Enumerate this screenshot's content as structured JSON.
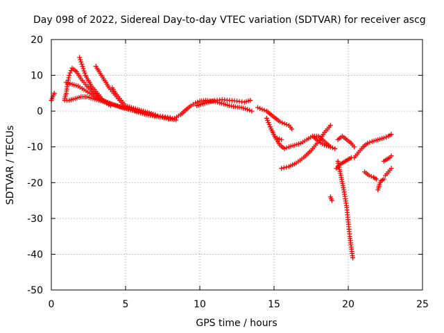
{
  "chart_data": {
    "type": "scatter",
    "title": "Day 098 of 2022, Sidereal Day-to-day VTEC variation (SDTVAR) for receiver ascg",
    "xlabel": "GPS time / hours",
    "ylabel": "SDTVAR / TECUs",
    "xlim": [
      0,
      25
    ],
    "ylim": [
      -50,
      20
    ],
    "xticks": [
      "0",
      "5",
      "10",
      "15",
      "20",
      "25"
    ],
    "yticks": [
      "20",
      "10",
      "0",
      "-10",
      "-20",
      "-30",
      "-40",
      "-50"
    ],
    "grid": true,
    "marker": "plus",
    "marker_color": "#ff0000",
    "series": [
      {
        "name": "trace-1",
        "x": [
          0.0,
          0.1,
          0.2
        ],
        "y": [
          3,
          4,
          5
        ]
      },
      {
        "name": "trace-2",
        "x": [
          0.9,
          1.0,
          1.1,
          1.2,
          1.4,
          1.7,
          2.0,
          2.4,
          2.8,
          3.2,
          3.6,
          4.0
        ],
        "y": [
          3.5,
          5,
          8,
          10,
          12,
          11,
          9,
          7,
          5.5,
          4,
          2.5,
          1.5
        ]
      },
      {
        "name": "trace-3",
        "x": [
          0.9,
          1.2,
          1.6,
          2.0,
          2.4,
          2.8,
          3.2,
          3.6,
          4.0,
          4.4,
          4.8,
          5.2,
          5.6,
          6.0,
          6.4,
          6.8,
          7.2,
          7.6,
          8.0,
          8.4
        ],
        "y": [
          3,
          3,
          3.5,
          4,
          4,
          3.5,
          3,
          2.5,
          2,
          1.5,
          1,
          0.5,
          0,
          -0.5,
          -1,
          -1.3,
          -1.6,
          -1.9,
          -2.2,
          -2.5
        ]
      },
      {
        "name": "trace-4",
        "x": [
          1.9,
          2.1,
          2.3,
          2.5,
          2.7,
          2.9,
          3.1,
          3.3,
          3.5,
          3.7,
          3.9
        ],
        "y": [
          15,
          12.5,
          10,
          8.5,
          7,
          6,
          5,
          4,
          3,
          2.5,
          2
        ]
      },
      {
        "name": "trace-5",
        "x": [
          1.0,
          1.4,
          1.8,
          2.2,
          2.6,
          3.0,
          3.4,
          3.8,
          4.2,
          4.6,
          5.0,
          5.5,
          6.0,
          6.5,
          7.0,
          7.5,
          8.0
        ],
        "y": [
          8,
          7.5,
          7,
          6,
          5,
          4,
          3,
          2.5,
          1.8,
          1.2,
          0.8,
          0.3,
          -0.2,
          -0.7,
          -1.2,
          -1.5,
          -1.8
        ]
      },
      {
        "name": "trace-6",
        "x": [
          3.0,
          3.3,
          3.6,
          3.9,
          4.2,
          4.5,
          4.8
        ],
        "y": [
          12.5,
          10.5,
          8.5,
          6.5,
          5,
          3.5,
          2
        ]
      },
      {
        "name": "trace-7",
        "x": [
          4.1,
          4.4,
          4.7,
          5.0,
          5.4,
          5.8,
          6.2,
          6.6,
          7.0
        ],
        "y": [
          6.5,
          4.5,
          3,
          1.5,
          1,
          0.5,
          0,
          -0.5,
          -1
        ]
      },
      {
        "name": "trace-8",
        "x": [
          7.9,
          8.3,
          8.7,
          9.1,
          9.4,
          9.7,
          10.0,
          10.4,
          10.8,
          11.2,
          11.6,
          12.0,
          12.4,
          12.8,
          13.2,
          13.5
        ],
        "y": [
          -2.2,
          -2,
          -1,
          0.5,
          1.5,
          2.3,
          2.8,
          3,
          2.8,
          2.5,
          2,
          1.5,
          1.2,
          1,
          0.5,
          0
        ]
      },
      {
        "name": "trace-9",
        "x": [
          9.8,
          10.2,
          10.6,
          11.0,
          11.5,
          12.0,
          12.5,
          13.0,
          13.4
        ],
        "y": [
          1.5,
          2,
          2.5,
          3,
          3.2,
          3,
          2.8,
          2.5,
          3
        ]
      },
      {
        "name": "trace-10",
        "x": [
          13.9,
          14.2,
          14.5,
          14.8,
          15.1,
          15.4,
          15.7,
          16.0,
          16.2
        ],
        "y": [
          1,
          0.5,
          0,
          -1,
          -2,
          -3,
          -3.5,
          -4,
          -5
        ]
      },
      {
        "name": "trace-11",
        "x": [
          14.5,
          14.8,
          15.1,
          15.4,
          15.7,
          16.0,
          16.4,
          16.8,
          17.2,
          17.6,
          18.0,
          18.4,
          18.8
        ],
        "y": [
          -2,
          -5,
          -7.5,
          -9.5,
          -10.5,
          -10,
          -9.5,
          -9,
          -8,
          -7,
          -7,
          -8.5,
          -10
        ]
      },
      {
        "name": "trace-12",
        "x": [
          15.5,
          16.0,
          16.5,
          17.0,
          17.5,
          18.0,
          18.4,
          18.8
        ],
        "y": [
          -16,
          -15.5,
          -14.5,
          -13,
          -11,
          -8.5,
          -6,
          -4
        ]
      },
      {
        "name": "trace-13",
        "x": [
          15.2,
          15.5
        ],
        "y": [
          -7.5,
          -8
        ]
      },
      {
        "name": "trace-14",
        "x": [
          17.6,
          18.0,
          18.4,
          18.8,
          19.1
        ],
        "y": [
          -7,
          -8.5,
          -9.5,
          -10,
          -10.5
        ]
      },
      {
        "name": "trace-15",
        "x": [
          18.8,
          18.9
        ],
        "y": [
          -24,
          -25
        ]
      },
      {
        "name": "trace-16",
        "x": [
          19.2,
          19.4,
          19.6,
          19.8,
          20.0,
          20.2,
          20.4,
          20.6,
          20.8,
          21.0
        ],
        "y": [
          -16,
          -15,
          -14.5,
          -14,
          -13.5,
          -13,
          -13,
          -12,
          -11,
          -10
        ]
      },
      {
        "name": "trace-17",
        "x": [
          19.3,
          19.5,
          19.7,
          19.9,
          20.0,
          20.1,
          20.2,
          20.3
        ],
        "y": [
          -14,
          -18,
          -22,
          -27,
          -31,
          -35,
          -38,
          -41
        ]
      },
      {
        "name": "trace-18",
        "x": [
          19.3,
          19.6,
          19.9,
          20.2,
          20.4
        ],
        "y": [
          -8,
          -7,
          -8,
          -9,
          -10
        ]
      },
      {
        "name": "trace-19",
        "x": [
          21.1,
          21.4,
          21.7,
          21.9
        ],
        "y": [
          -17,
          -18,
          -18.5,
          -19
        ]
      },
      {
        "name": "trace-20",
        "x": [
          21.0,
          21.3,
          21.6,
          22.0,
          22.4,
          22.7,
          22.9
        ],
        "y": [
          -10,
          -9,
          -8.5,
          -8,
          -7.5,
          -7,
          -6.5
        ]
      },
      {
        "name": "trace-21",
        "x": [
          22.0,
          22.1,
          22.2,
          22.4
        ],
        "y": [
          -22,
          -20.5,
          -19.5,
          -19
        ]
      },
      {
        "name": "trace-22",
        "x": [
          22.4,
          22.6,
          22.8,
          22.9
        ],
        "y": [
          -14,
          -13.5,
          -13,
          -12.5
        ]
      },
      {
        "name": "trace-23",
        "x": [
          22.5,
          22.7,
          22.9
        ],
        "y": [
          -18,
          -17,
          -16
        ]
      }
    ]
  }
}
